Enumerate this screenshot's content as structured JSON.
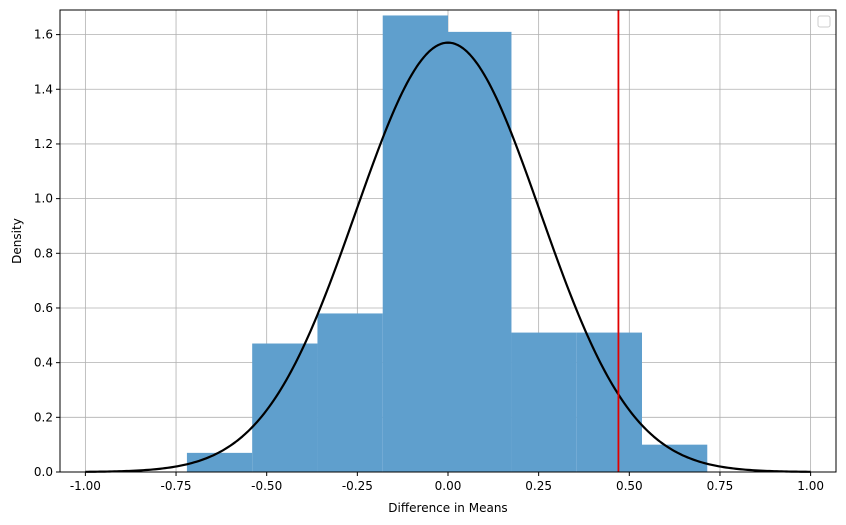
{
  "chart_data": {
    "type": "bar",
    "title": "",
    "xlabel": "Difference in Means",
    "ylabel": "Density",
    "xlim": [
      -1.07,
      1.07
    ],
    "ylim": [
      0,
      1.69
    ],
    "grid": true,
    "legend": {
      "placement": "top-right",
      "entries": []
    },
    "x_ticks": [
      "-1.00",
      "-0.75",
      "-0.50",
      "-0.25",
      "0.00",
      "0.25",
      "0.50",
      "0.75",
      "1.00"
    ],
    "x_tick_values": [
      -1.0,
      -0.75,
      -0.5,
      -0.25,
      0.0,
      0.25,
      0.5,
      0.75,
      1.0
    ],
    "y_ticks": [
      "0.0",
      "0.2",
      "0.4",
      "0.6",
      "0.8",
      "1.0",
      "1.2",
      "1.4",
      "1.6"
    ],
    "y_tick_values": [
      0.0,
      0.2,
      0.4,
      0.6,
      0.8,
      1.0,
      1.2,
      1.4,
      1.6
    ],
    "histogram": {
      "color": "#5f9fcd",
      "bins": [
        {
          "x0": -0.72,
          "x1": -0.54,
          "density": 0.07
        },
        {
          "x0": -0.54,
          "x1": -0.36,
          "density": 0.47
        },
        {
          "x0": -0.36,
          "x1": -0.18,
          "density": 0.58
        },
        {
          "x0": -0.18,
          "x1": 0.0,
          "density": 1.67
        },
        {
          "x0": 0.0,
          "x1": 0.175,
          "density": 1.61
        },
        {
          "x0": 0.175,
          "x1": 0.355,
          "density": 0.51
        },
        {
          "x0": 0.355,
          "x1": 0.535,
          "density": 0.51
        },
        {
          "x0": 0.535,
          "x1": 0.715,
          "density": 0.1
        }
      ]
    },
    "normal_curve": {
      "mean": 0.0,
      "std": 0.254,
      "x_range": [
        -1.0,
        1.0
      ],
      "color": "#000000"
    },
    "vertical_line": {
      "x": 0.47,
      "color": "#e00000"
    }
  }
}
